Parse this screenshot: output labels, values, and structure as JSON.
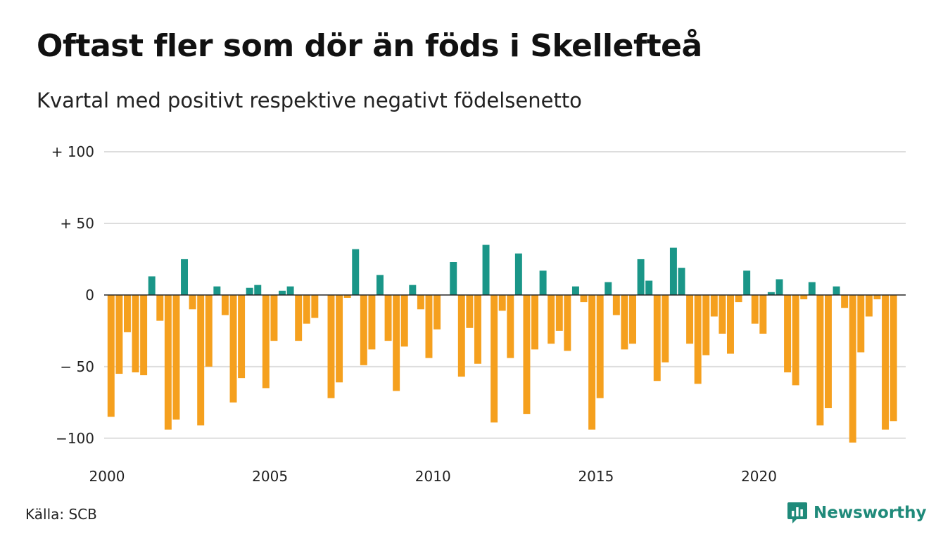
{
  "header": {
    "title": "Oftast fler som dör än föds i Skellefteå",
    "subtitle": "Kvartal med positivt respektive negativt födelsenetto"
  },
  "footer": {
    "source": "Källa: SCB",
    "brand": "Newsworthy",
    "brand_icon": "newsworthy-logo-icon"
  },
  "colors": {
    "positive": "#1a9688",
    "negative": "#f5a01e",
    "grid": "#dddddd",
    "brand": "#1f8a7a"
  },
  "chart_data": {
    "type": "bar",
    "title": "Oftast fler som dör än föds i Skellefteå",
    "subtitle": "Kvartal med positivt respektive negativt födelsenetto",
    "x_start": 2000.0,
    "x_step": 0.25,
    "xlim": [
      2000,
      2024.5
    ],
    "ylim": [
      -105,
      100
    ],
    "x_ticks": [
      {
        "value": 2000,
        "label": "2000"
      },
      {
        "value": 2005,
        "label": "2005"
      },
      {
        "value": 2010,
        "label": "2010"
      },
      {
        "value": 2015,
        "label": "2015"
      },
      {
        "value": 2020,
        "label": "2020"
      }
    ],
    "y_ticks": [
      {
        "value": 100,
        "label": "+ 100"
      },
      {
        "value": 50,
        "label": "+  50"
      },
      {
        "value": 0,
        "label": "0"
      },
      {
        "value": -50,
        "label": "− 50"
      },
      {
        "value": -100,
        "label": "−100"
      }
    ],
    "grid": true,
    "values": [
      -85,
      -55,
      -26,
      -54,
      -56,
      13,
      -18,
      -94,
      -87,
      25,
      -10,
      -91,
      -50,
      6,
      -14,
      -75,
      -58,
      5,
      7,
      -65,
      -32,
      3,
      6,
      -32,
      -20,
      -16,
      0,
      -72,
      -61,
      -2,
      32,
      -49,
      -38,
      14,
      -32,
      -67,
      -36,
      7,
      -10,
      -44,
      -24,
      0,
      23,
      -57,
      -23,
      -48,
      35,
      -89,
      -11,
      -44,
      29,
      -83,
      -38,
      17,
      -34,
      -25,
      -39,
      6,
      -5,
      -94,
      -72,
      9,
      -14,
      -38,
      -34,
      25,
      10,
      -60,
      -47,
      33,
      19,
      -34,
      -62,
      -42,
      -15,
      -27,
      -41,
      -5,
      17,
      -20,
      -27,
      2,
      11,
      -54,
      -63,
      -3,
      9,
      -91,
      -79,
      6,
      -9,
      -103,
      -40,
      -15,
      -3,
      -94,
      -88
    ]
  }
}
